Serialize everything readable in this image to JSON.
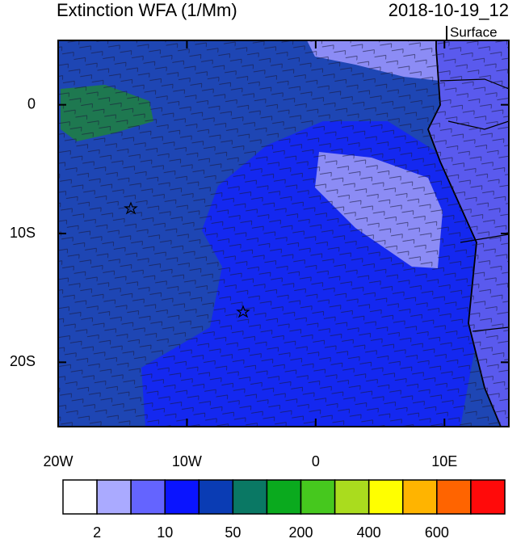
{
  "map": {
    "title": "Extinction WFA (1/Mm)",
    "date": "2018-10-19_12",
    "level": "Surface",
    "xlim": [
      -20,
      15
    ],
    "ylim": [
      -25,
      5
    ],
    "xticks": [
      {
        "value": -20,
        "label": "20W"
      },
      {
        "value": -10,
        "label": "10W"
      },
      0,
      {
        "value": 10,
        "label": "10E"
      }
    ],
    "yticks": [
      0,
      {
        "value": -10,
        "label": "10S"
      },
      {
        "value": -20,
        "label": "20S"
      }
    ],
    "colorbar": {
      "colors": [
        "#ffffff",
        "#aaaaff",
        "#6464ff",
        "#0a14ff",
        "#0a3cb4",
        "#0a7864",
        "#0aaa1e",
        "#46c81e",
        "#aadc1e",
        "#ffff00",
        "#ffb400",
        "#ff6400",
        "#ff0a0a"
      ],
      "labels": [
        "2",
        "10",
        "50",
        "200",
        "400",
        "600"
      ]
    }
  }
}
